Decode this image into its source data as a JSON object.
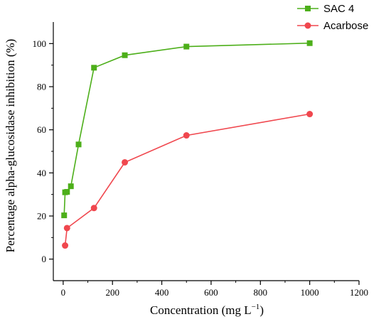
{
  "chart_data": {
    "type": "line",
    "title": "",
    "xlabel": "Concentration (mg L",
    "xlabel_superscript": "−1",
    "xlabel_suffix": ")",
    "ylabel": "Percentage alpha-glucosidase inhibition (%)",
    "xlim": [
      -40,
      1200
    ],
    "ylim": [
      -10,
      110
    ],
    "xticks": [
      0,
      200,
      400,
      600,
      800,
      1000,
      1200
    ],
    "yticks": [
      0,
      20,
      40,
      60,
      80,
      100
    ],
    "grid": false,
    "legend_position": "top-right",
    "series": [
      {
        "name": "SAC 4",
        "color": "#4daf1a",
        "marker": "square",
        "x": [
          3.9,
          7.8,
          15.6,
          31.25,
          62.5,
          125,
          250,
          500,
          1000
        ],
        "y": [
          20.3,
          31.0,
          31.2,
          33.8,
          53.2,
          88.8,
          94.6,
          98.6,
          100.2
        ]
      },
      {
        "name": "Acarbose",
        "color": "#f0474e",
        "marker": "circle",
        "x": [
          7.8,
          15.6,
          125,
          250,
          500,
          1000
        ],
        "y": [
          6.3,
          14.4,
          23.7,
          44.9,
          57.4,
          67.3
        ]
      }
    ]
  }
}
